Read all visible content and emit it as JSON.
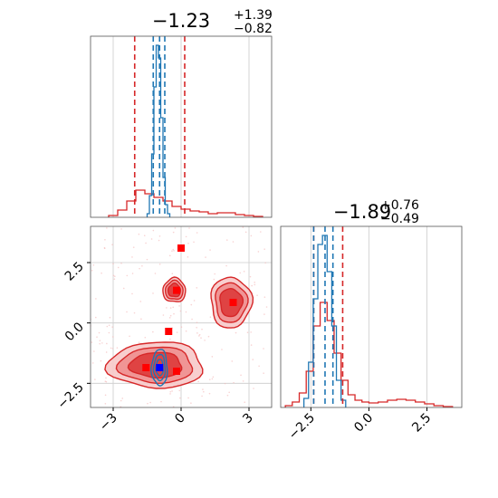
{
  "chart_data": [
    {
      "type": "histogram",
      "panel": "top-left",
      "title": {
        "median": "−1.23",
        "plus": "+1.39",
        "minus": "−0.82"
      },
      "xlim": [
        -4,
        4
      ],
      "grid": true,
      "reference_lines_red": [
        -2.05,
        0.16
      ],
      "reference_lines_blue": [
        -1.23,
        -0.95,
        -0.72
      ],
      "series": [
        {
          "name": "",
          "color": "#d62728",
          "bin_edges": [
            -3.2,
            -2.8,
            -2.4,
            -2.0,
            -1.6,
            -1.2,
            -0.8,
            -0.4,
            0.0,
            0.4,
            0.8,
            1.2,
            1.6,
            2.0,
            2.4,
            2.8,
            3.2,
            3.6
          ],
          "heights": [
            0.01,
            0.04,
            0.09,
            0.15,
            0.13,
            0.11,
            0.09,
            0.06,
            0.045,
            0.035,
            0.03,
            0.02,
            0.025,
            0.025,
            0.015,
            0.01,
            0.005
          ]
        },
        {
          "name": "",
          "color": "#1f77b4",
          "bin_edges": [
            -1.5,
            -1.4,
            -1.3,
            -1.2,
            -1.1,
            -1.0,
            -0.9,
            -0.8,
            -0.7,
            -0.6,
            -0.5
          ],
          "heights": [
            0.02,
            0.12,
            0.35,
            0.72,
            0.95,
            0.88,
            0.55,
            0.22,
            0.07,
            0.02
          ]
        }
      ]
    },
    {
      "type": "contour",
      "panel": "bottom-left",
      "xlim": [
        -4,
        4
      ],
      "ylim": [
        -3.5,
        4
      ],
      "xticks": [
        "−3",
        "0",
        "3"
      ],
      "yticks": [
        "−2.5",
        "0.0",
        "2.5"
      ],
      "grid": true,
      "red_points": [
        [
          0.0,
          3.1
        ],
        [
          -0.2,
          1.35
        ],
        [
          2.3,
          0.85
        ],
        [
          -0.55,
          -0.35
        ],
        [
          -1.55,
          -1.85
        ],
        [
          -0.2,
          -2.0
        ]
      ],
      "blue_points": [
        [
          -0.95,
          -1.85
        ]
      ],
      "red_regions": [
        {
          "cx": -1.1,
          "cy": -1.75,
          "rx": 2.1,
          "ry": 0.95
        },
        {
          "cx": -0.3,
          "cy": 1.35,
          "rx": 0.5,
          "ry": 0.5
        },
        {
          "cx": 2.2,
          "cy": 0.85,
          "rx": 0.9,
          "ry": 1.05
        }
      ],
      "blue_regions": [
        {
          "cx": -0.95,
          "cy": -1.85,
          "rx": 0.35,
          "ry": 0.75
        }
      ]
    },
    {
      "type": "histogram",
      "panel": "bottom-right",
      "title": {
        "median": "−1.89",
        "plus": "+0.76",
        "minus": "−0.49"
      },
      "xlim": [
        -3.8,
        4.0
      ],
      "xticks": [
        "−2.5",
        "0.0",
        "2.5"
      ],
      "grid": true,
      "reference_lines_red": [
        -2.38,
        -1.13
      ],
      "reference_lines_blue": [
        -2.38,
        -1.89,
        -1.55
      ],
      "series": [
        {
          "name": "",
          "color": "#d62728",
          "bin_edges": [
            -3.6,
            -3.3,
            -3.0,
            -2.7,
            -2.4,
            -2.1,
            -1.8,
            -1.5,
            -1.2,
            -0.9,
            -0.6,
            -0.3,
            0.0,
            0.4,
            0.8,
            1.2,
            1.6,
            2.0,
            2.4,
            2.8,
            3.2,
            3.6
          ],
          "heights": [
            0.01,
            0.03,
            0.08,
            0.2,
            0.45,
            0.58,
            0.48,
            0.3,
            0.15,
            0.07,
            0.04,
            0.03,
            0.025,
            0.03,
            0.04,
            0.045,
            0.04,
            0.03,
            0.02,
            0.01,
            0.005
          ]
        },
        {
          "name": "",
          "color": "#1f77b4",
          "bin_edges": [
            -2.8,
            -2.6,
            -2.4,
            -2.2,
            -2.0,
            -1.8,
            -1.6,
            -1.4,
            -1.2,
            -1.0
          ],
          "heights": [
            0.05,
            0.25,
            0.6,
            0.9,
            0.95,
            0.75,
            0.45,
            0.15,
            0.04
          ]
        }
      ]
    }
  ]
}
